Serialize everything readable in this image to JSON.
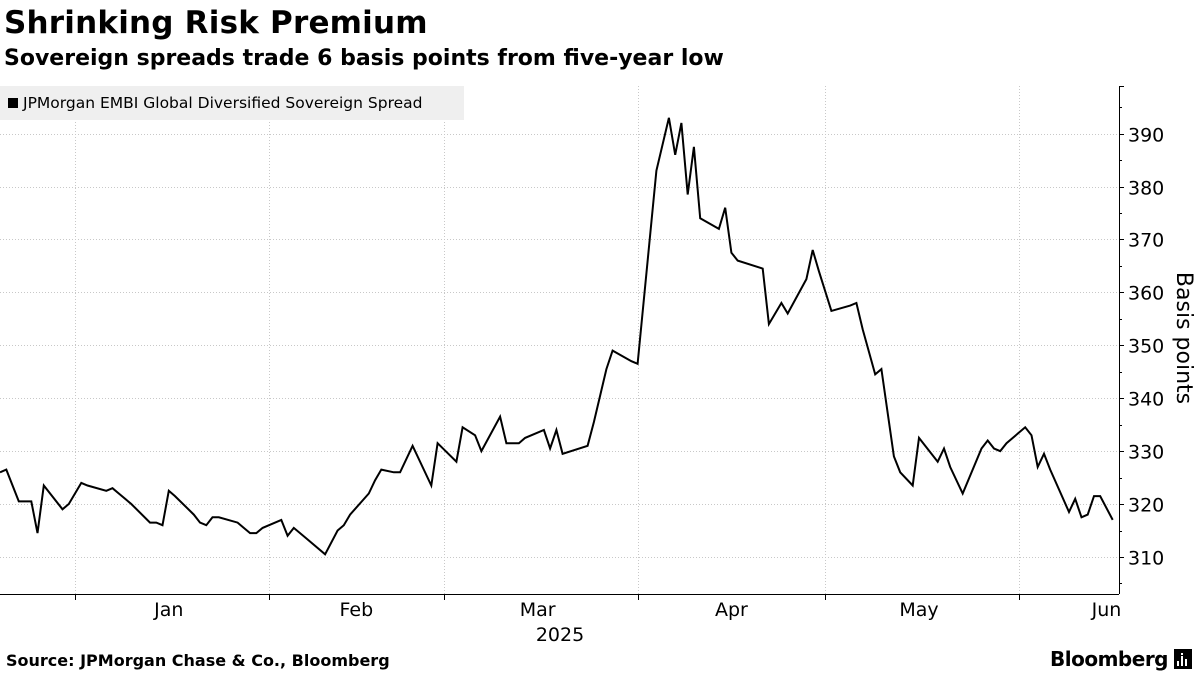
{
  "header": {
    "title": "Shrinking Risk Premium",
    "subtitle": "Sovereign spreads trade 6 basis points from five-year low"
  },
  "footer": {
    "source": "Source: JPMorgan Chase & Co., Bloomberg",
    "brand": "Bloomberg",
    "brand_icon": "bloomberg-terminal-icon"
  },
  "colors": {
    "line": "#000000",
    "grid": "#c8c8c8",
    "legend_bg": "#efefef"
  },
  "chart_data": {
    "type": "line",
    "title": "Shrinking Risk Premium",
    "subtitle": "Sovereign spreads trade 6 basis points from five-year low",
    "xlabel": "2025",
    "ylabel": "Basis points",
    "ylim": [
      303,
      399
    ],
    "yticks": [
      310,
      320,
      330,
      340,
      350,
      360,
      370,
      380,
      390
    ],
    "x_range": [
      "2024-12-20",
      "2025-06-17"
    ],
    "x_gridlines": [
      "2025-01-01",
      "2025-02-01",
      "2025-03-01",
      "2025-04-01",
      "2025-05-01",
      "2025-06-01"
    ],
    "x_ticks": [
      {
        "label": "Jan",
        "date": "2025-01-16"
      },
      {
        "label": "Feb",
        "date": "2025-02-15"
      },
      {
        "label": "Mar",
        "date": "2025-03-16"
      },
      {
        "label": "Apr",
        "date": "2025-04-16"
      },
      {
        "label": "May",
        "date": "2025-05-16"
      },
      {
        "label": "Jun",
        "date": "2025-06-15"
      }
    ],
    "grid": true,
    "legend": "top-left",
    "series": [
      {
        "name": "JPMorgan EMBI Global Diversified Sovereign Spread",
        "color": "#000000",
        "points": [
          [
            "2024-12-20",
            326.0
          ],
          [
            "2024-12-21",
            326.5
          ],
          [
            "2024-12-23",
            320.5
          ],
          [
            "2024-12-25",
            320.5
          ],
          [
            "2024-12-26",
            314.5
          ],
          [
            "2024-12-27",
            323.5
          ],
          [
            "2024-12-30",
            319.0
          ],
          [
            "2024-12-31",
            320.0
          ],
          [
            "2025-01-02",
            324.0
          ],
          [
            "2025-01-03",
            323.5
          ],
          [
            "2025-01-06",
            322.5
          ],
          [
            "2025-01-07",
            323.0
          ],
          [
            "2025-01-08",
            322.0
          ],
          [
            "2025-01-10",
            320.0
          ],
          [
            "2025-01-13",
            316.5
          ],
          [
            "2025-01-14",
            316.5
          ],
          [
            "2025-01-15",
            316.0
          ],
          [
            "2025-01-16",
            322.5
          ],
          [
            "2025-01-17",
            321.5
          ],
          [
            "2025-01-20",
            318.0
          ],
          [
            "2025-01-21",
            316.5
          ],
          [
            "2025-01-22",
            316.0
          ],
          [
            "2025-01-23",
            317.5
          ],
          [
            "2025-01-24",
            317.5
          ],
          [
            "2025-01-27",
            316.5
          ],
          [
            "2025-01-28",
            315.5
          ],
          [
            "2025-01-29",
            314.5
          ],
          [
            "2025-01-30",
            314.5
          ],
          [
            "2025-01-31",
            315.5
          ],
          [
            "2025-02-03",
            317.0
          ],
          [
            "2025-02-04",
            314.0
          ],
          [
            "2025-02-05",
            315.5
          ],
          [
            "2025-02-07",
            313.5
          ],
          [
            "2025-02-10",
            310.5
          ],
          [
            "2025-02-12",
            315.0
          ],
          [
            "2025-02-13",
            316.0
          ],
          [
            "2025-02-14",
            318.0
          ],
          [
            "2025-02-17",
            322.0
          ],
          [
            "2025-02-18",
            324.5
          ],
          [
            "2025-02-19",
            326.5
          ],
          [
            "2025-02-21",
            326.0
          ],
          [
            "2025-02-22",
            326.0
          ],
          [
            "2025-02-24",
            331.0
          ],
          [
            "2025-02-27",
            323.5
          ],
          [
            "2025-02-28",
            331.5
          ],
          [
            "2025-03-03",
            328.0
          ],
          [
            "2025-03-04",
            334.5
          ],
          [
            "2025-03-06",
            333.0
          ],
          [
            "2025-03-07",
            330.0
          ],
          [
            "2025-03-10",
            336.5
          ],
          [
            "2025-03-11",
            331.5
          ],
          [
            "2025-03-13",
            331.5
          ],
          [
            "2025-03-14",
            332.5
          ],
          [
            "2025-03-17",
            334.0
          ],
          [
            "2025-03-18",
            330.5
          ],
          [
            "2025-03-19",
            334.0
          ],
          [
            "2025-03-20",
            329.5
          ],
          [
            "2025-03-24",
            331.0
          ],
          [
            "2025-03-25",
            335.5
          ],
          [
            "2025-03-27",
            345.5
          ],
          [
            "2025-03-28",
            349.0
          ],
          [
            "2025-03-31",
            347.0
          ],
          [
            "2025-04-01",
            346.5
          ],
          [
            "2025-04-04",
            383.0
          ],
          [
            "2025-04-06",
            393.0
          ],
          [
            "2025-04-07",
            386.0
          ],
          [
            "2025-04-08",
            392.0
          ],
          [
            "2025-04-09",
            378.5
          ],
          [
            "2025-04-10",
            387.5
          ],
          [
            "2025-04-11",
            374.0
          ],
          [
            "2025-04-14",
            372.0
          ],
          [
            "2025-04-15",
            376.0
          ],
          [
            "2025-04-16",
            367.5
          ],
          [
            "2025-04-17",
            366.0
          ],
          [
            "2025-04-21",
            364.5
          ],
          [
            "2025-04-22",
            354.0
          ],
          [
            "2025-04-24",
            358.0
          ],
          [
            "2025-04-25",
            356.0
          ],
          [
            "2025-04-28",
            362.5
          ],
          [
            "2025-04-29",
            368.0
          ],
          [
            "2025-04-30",
            364.0
          ],
          [
            "2025-05-02",
            356.5
          ],
          [
            "2025-05-05",
            357.5
          ],
          [
            "2025-05-06",
            358.0
          ],
          [
            "2025-05-07",
            353.0
          ],
          [
            "2025-05-09",
            344.5
          ],
          [
            "2025-05-10",
            345.5
          ],
          [
            "2025-05-12",
            329.0
          ],
          [
            "2025-05-13",
            326.0
          ],
          [
            "2025-05-15",
            323.5
          ],
          [
            "2025-05-16",
            332.5
          ],
          [
            "2025-05-19",
            328.0
          ],
          [
            "2025-05-20",
            330.5
          ],
          [
            "2025-05-21",
            327.0
          ],
          [
            "2025-05-23",
            322.0
          ],
          [
            "2025-05-26",
            330.5
          ],
          [
            "2025-05-27",
            332.0
          ],
          [
            "2025-05-28",
            330.5
          ],
          [
            "2025-05-29",
            330.0
          ],
          [
            "2025-05-30",
            331.5
          ],
          [
            "2025-06-02",
            334.5
          ],
          [
            "2025-06-03",
            333.0
          ],
          [
            "2025-06-04",
            327.0
          ],
          [
            "2025-06-05",
            329.5
          ],
          [
            "2025-06-06",
            326.5
          ],
          [
            "2025-06-09",
            318.5
          ],
          [
            "2025-06-10",
            321.0
          ],
          [
            "2025-06-11",
            317.5
          ],
          [
            "2025-06-12",
            318.0
          ],
          [
            "2025-06-13",
            321.5
          ],
          [
            "2025-06-14",
            321.5
          ],
          [
            "2025-06-16",
            317.0
          ]
        ]
      }
    ]
  }
}
